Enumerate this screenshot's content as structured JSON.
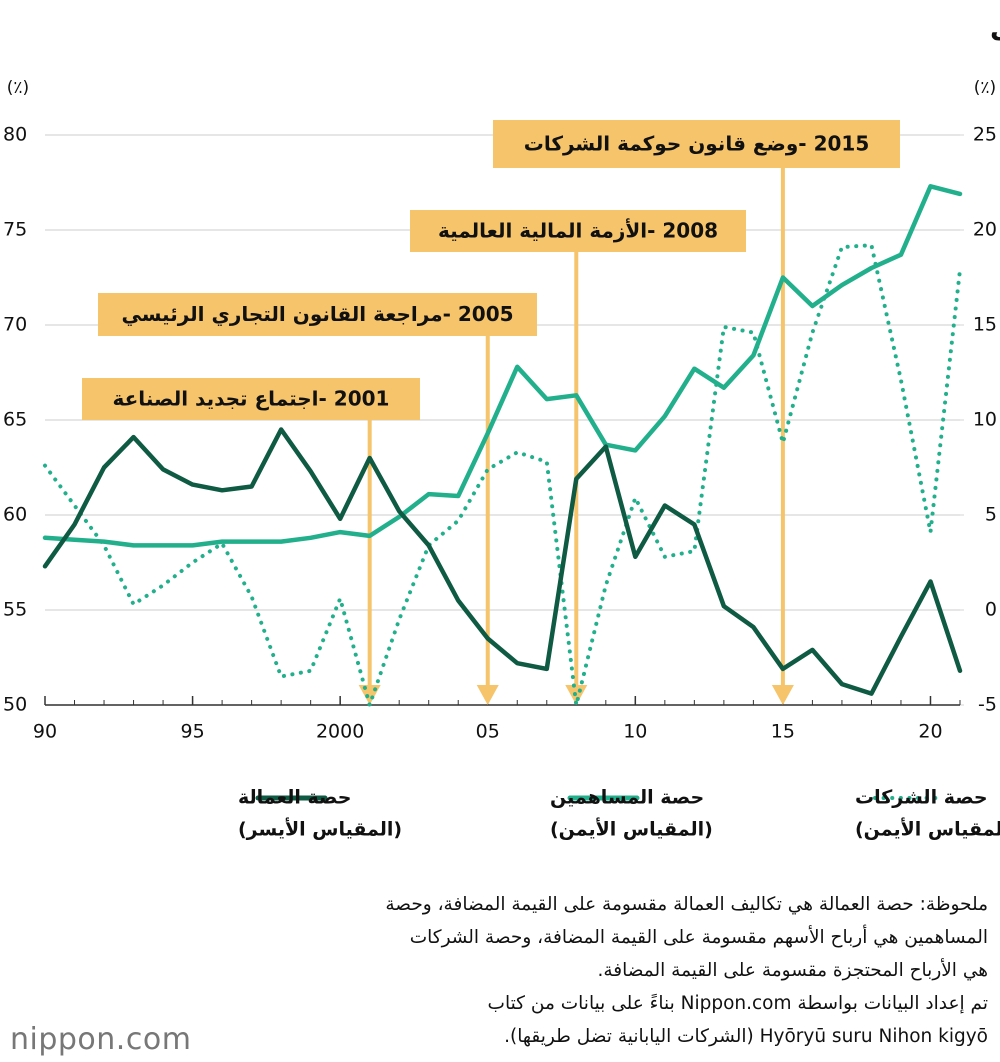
{
  "chart_data": {
    "type": "line",
    "title": "توزيع القيمة المضافة للشركات الكبرى",
    "y_unit": "(٪)",
    "y2_unit": "(٪)",
    "x": [
      1990,
      1991,
      1992,
      1993,
      1994,
      1995,
      1996,
      1997,
      1998,
      1999,
      2000,
      2001,
      2002,
      2003,
      2004,
      2005,
      2006,
      2007,
      2008,
      2009,
      2010,
      2011,
      2012,
      2013,
      2014,
      2015,
      2016,
      2017,
      2018,
      2019,
      2020,
      2021
    ],
    "xlim": [
      1990,
      2021
    ],
    "xticks": [
      {
        "value": 1990,
        "label": "90"
      },
      {
        "value": 1995,
        "label": "95"
      },
      2000,
      {
        "value": 2005,
        "label": "05"
      },
      {
        "value": 2010,
        "label": "10"
      },
      {
        "value": 2015,
        "label": "15"
      },
      {
        "value": 2020,
        "label": "20"
      }
    ],
    "ylim": [
      50,
      80
    ],
    "yticks": [
      50,
      55,
      60,
      65,
      70,
      75,
      80
    ],
    "y2lim": [
      -5,
      25
    ],
    "y2ticks": [
      -5,
      0,
      5,
      10,
      15,
      20,
      25
    ],
    "grid": true,
    "series": [
      {
        "name": "حصة الشركات",
        "note": "(المقياس الأيمن)",
        "color": "#22b08c",
        "style": "dotted",
        "axis": "y2",
        "values": [
          7.6,
          5.5,
          3.4,
          0.3,
          1.3,
          2.5,
          3.5,
          0.7,
          -3.5,
          -3.2,
          0.6,
          -5.0,
          -0.5,
          3.4,
          4.7,
          7.4,
          8.3,
          7.8,
          -5.0,
          1.3,
          5.9,
          2.8,
          3.1,
          14.9,
          14.6,
          8.8,
          14.6,
          19.1,
          19.2,
          12.1,
          4.1,
          17.9
        ]
      },
      {
        "name": "حصة المساهمين",
        "note": "(المقياس الأيمن)",
        "color": "#22b08c",
        "style": "solid",
        "axis": "y2",
        "values": [
          3.8,
          3.7,
          3.6,
          3.4,
          3.4,
          3.4,
          3.6,
          3.6,
          3.6,
          3.8,
          4.1,
          3.9,
          4.9,
          6.1,
          6.0,
          9.3,
          12.8,
          11.1,
          11.3,
          8.7,
          8.4,
          10.2,
          12.7,
          11.7,
          13.4,
          17.5,
          16.0,
          17.1,
          18.0,
          18.7,
          22.3,
          21.9
        ]
      },
      {
        "name": "حصة العمالة",
        "note": "(المقياس الأيسر)",
        "color": "#0e5a43",
        "style": "solid",
        "axis": "y",
        "values": [
          57.3,
          59.5,
          62.5,
          64.1,
          62.4,
          61.6,
          61.3,
          61.5,
          64.5,
          62.3,
          59.8,
          63.0,
          60.2,
          58.4,
          55.5,
          53.5,
          52.2,
          51.9,
          61.9,
          63.6,
          57.8,
          60.5,
          59.5,
          55.2,
          54.1,
          51.9,
          52.9,
          51.1,
          50.6,
          53.6,
          56.5,
          51.8
        ]
      }
    ],
    "annotations": [
      {
        "x": 2001,
        "label": "2001 -اجتماع تجديد الصناعة"
      },
      {
        "x": 2005,
        "label": "2005 -مراجعة القانون التجاري الرئيسي"
      },
      {
        "x": 2008,
        "label": "2008 -الأزمة المالية العالمية"
      },
      {
        "x": 2015,
        "label": "2015 -وضع قانون حوكمة الشركات"
      }
    ]
  },
  "notes": [
    "ملحوظة: حصة العمالة هي تكاليف العمالة مقسومة على القيمة المضافة، وحصة",
    "المساهمين هي أرباح الأسهم مقسومة على القيمة المضافة، وحصة الشركات",
    "هي الأرباح المحتجزة مقسومة على القيمة المضافة.",
    "تم إعداد البيانات بواسطة Nippon.com بناءً على بيانات من كتاب",
    "Hyōryū suru Nihon kigyō (الشركات اليابانية تضل طريقها)."
  ],
  "logo": "nippon.com"
}
